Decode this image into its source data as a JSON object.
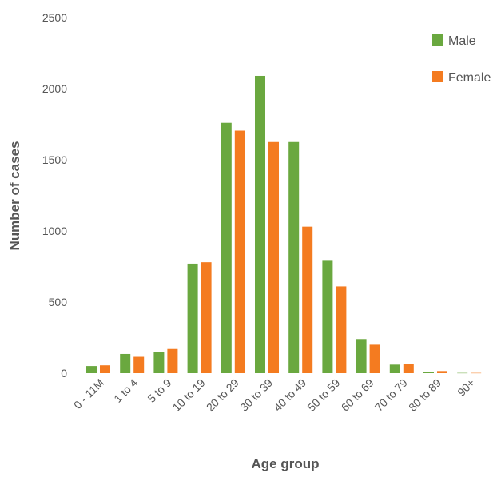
{
  "chart_data": {
    "type": "bar",
    "title": "",
    "xlabel": "Age group",
    "ylabel": "Number of cases",
    "ylim": [
      0,
      2500
    ],
    "yticks": [
      0,
      500,
      1000,
      1500,
      2000,
      2500
    ],
    "grid": false,
    "legend_position": "top-right",
    "categories": [
      "0 - 11M",
      "1 to 4",
      "5 to 9",
      "10 to 19",
      "20 to 29",
      "30 to 39",
      "40 to 49",
      "50 to 59",
      "60 to 69",
      "70 to 79",
      "80 to 89",
      "90+"
    ],
    "series": [
      {
        "name": "Male",
        "color": "#6aa83f",
        "values": [
          50,
          135,
          150,
          770,
          1760,
          2090,
          1625,
          790,
          240,
          60,
          10,
          2
        ]
      },
      {
        "name": "Female",
        "color": "#f47b20",
        "values": [
          55,
          115,
          170,
          780,
          1705,
          1625,
          1030,
          610,
          200,
          65,
          15,
          2
        ]
      }
    ]
  }
}
